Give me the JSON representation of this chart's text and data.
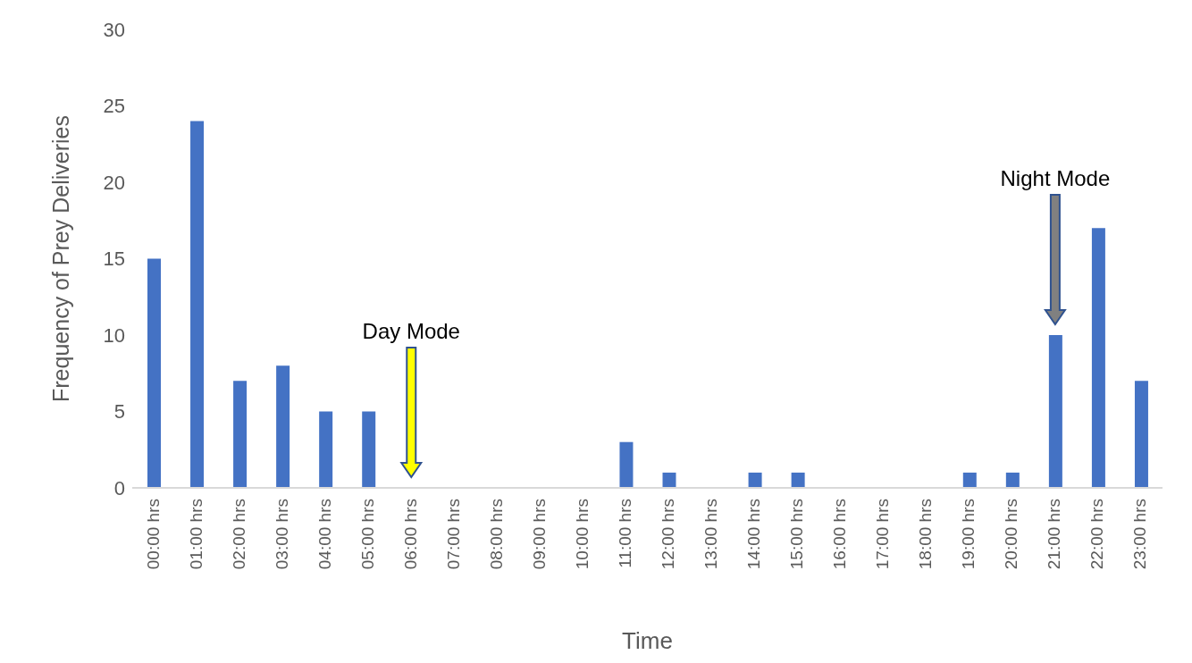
{
  "chart_data": {
    "type": "bar",
    "xlabel": "Time",
    "ylabel": "Frequency of Prey Deliveries",
    "categories": [
      "00:00 hrs",
      "01:00 hrs",
      "02:00 hrs",
      "03:00 hrs",
      "04:00 hrs",
      "05:00 hrs",
      "06:00 hrs",
      "07:00 hrs",
      "08:00 hrs",
      "09:00 hrs",
      "10:00 hrs",
      "11:00 hrs",
      "12:00 hrs",
      "13:00 hrs",
      "14:00 hrs",
      "15:00 hrs",
      "16:00 hrs",
      "17:00 hrs",
      "18:00 hrs",
      "19:00 hrs",
      "20:00 hrs",
      "21:00 hrs",
      "22:00 hrs",
      "23:00 hrs"
    ],
    "values": [
      15,
      24,
      7,
      8,
      5,
      5,
      0,
      0,
      0,
      0,
      0,
      3,
      1,
      0,
      1,
      1,
      0,
      0,
      0,
      1,
      1,
      10,
      17,
      7
    ],
    "color": "#4472c4",
    "ylim": [
      0,
      30
    ],
    "yticks": [
      0,
      5,
      10,
      15,
      20,
      25,
      30
    ],
    "grid": false,
    "legend": false,
    "annotations": [
      "Day Mode",
      "Night Mode"
    ]
  }
}
